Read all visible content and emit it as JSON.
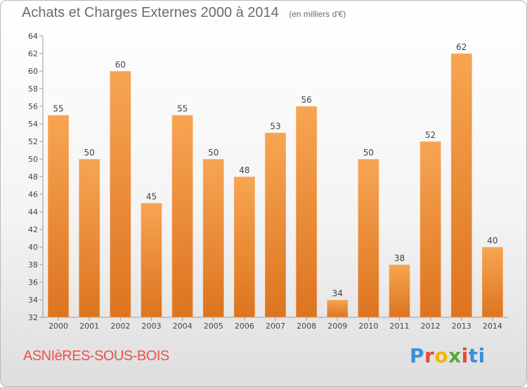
{
  "title": "Achats et Charges Externes 2000 à 2014",
  "subtitle": "(en milliers d'€)",
  "place_name": "ASNIèRES-SOUS-BOIS",
  "logo": {
    "text": "Proxiti",
    "letters": [
      "P",
      "r",
      "o",
      "x",
      "i",
      "ti"
    ]
  },
  "colors": {
    "bar_top": "#f7a552",
    "bar_bottom": "#dd7420",
    "axis": "#9a9a9a",
    "place": "#e8534a"
  },
  "chart_data": {
    "type": "bar",
    "title": "Achats et Charges Externes 2000 à 2014",
    "subtitle": "(en milliers d'€)",
    "xlabel": "",
    "ylabel": "",
    "categories": [
      "2000",
      "2001",
      "2002",
      "2003",
      "2004",
      "2005",
      "2006",
      "2007",
      "2008",
      "2009",
      "2010",
      "2011",
      "2012",
      "2013",
      "2014"
    ],
    "values": [
      55,
      50,
      60,
      45,
      55,
      50,
      48,
      53,
      56,
      34,
      50,
      38,
      52,
      62,
      40
    ],
    "ylim": [
      32,
      64
    ],
    "yticks": [
      32,
      34,
      36,
      38,
      40,
      42,
      44,
      46,
      48,
      50,
      52,
      54,
      56,
      58,
      60,
      62,
      64
    ],
    "grid": false,
    "data_labels": true
  }
}
